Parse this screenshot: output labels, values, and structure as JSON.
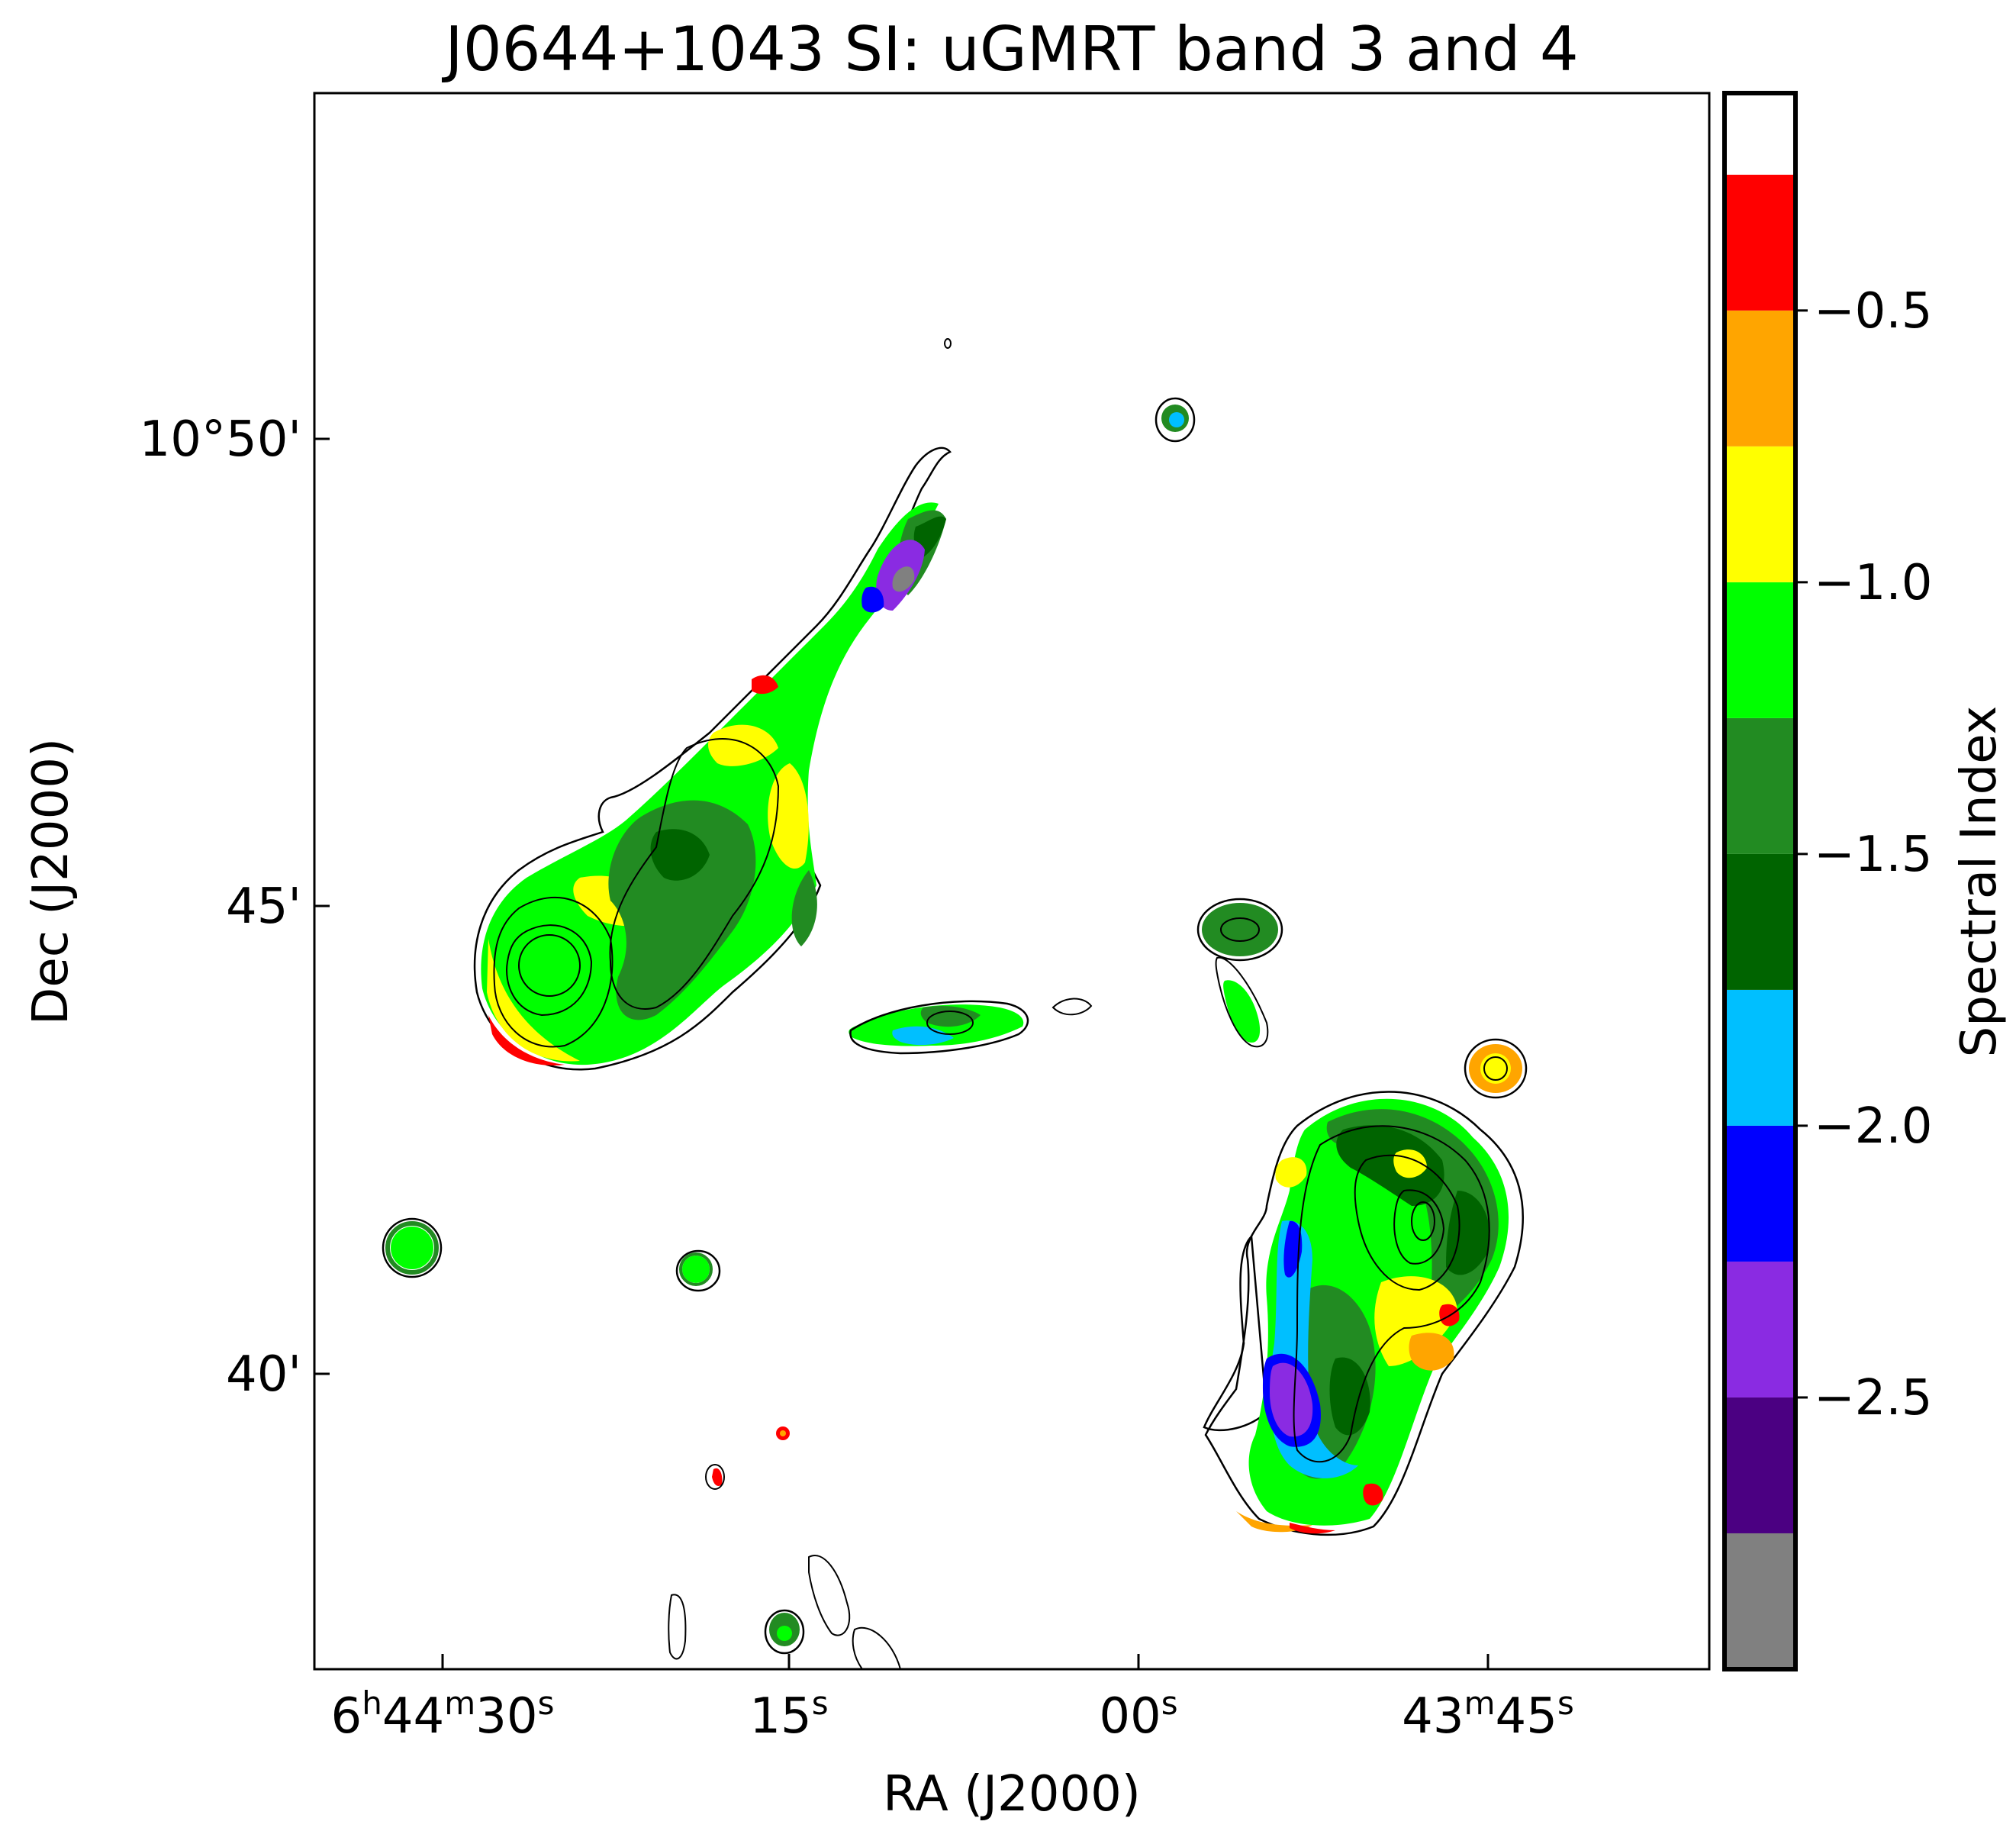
{
  "chart_data": {
    "type": "heatmap",
    "title": "J0644+1043 SI: uGMRT band 3 and 4",
    "xlabel": "RA (J2000)",
    "ylabel": "Dec (J2000)",
    "x_ticks": [
      {
        "pre": "6",
        "sup1": "h",
        "mid": "44",
        "sup2": "m",
        "end": "30",
        "sup3": "s"
      },
      {
        "pre": "",
        "sup1": "",
        "mid": "",
        "sup2": "",
        "end": "15",
        "sup3": "s"
      },
      {
        "pre": "",
        "sup1": "",
        "mid": "",
        "sup2": "",
        "end": "00",
        "sup3": "s"
      },
      {
        "pre": "",
        "sup1": "",
        "mid": "43",
        "sup2": "m",
        "end": "45",
        "sup3": "s"
      }
    ],
    "y_ticks": [
      "10°50'",
      "45'",
      "40'"
    ],
    "colorbar": {
      "label": "Spectral Index",
      "range": [
        -3.0,
        -0.1
      ],
      "tick_labels": [
        "−0.5",
        "−1.0",
        "−1.5",
        "−2.0",
        "−2.5"
      ],
      "tick_values": [
        -0.5,
        -1.0,
        -1.5,
        -2.0,
        -2.5
      ],
      "bins": [
        {
          "from": -3.0,
          "to": -2.75,
          "color": "#808080"
        },
        {
          "from": -2.75,
          "to": -2.5,
          "color": "#4b0082"
        },
        {
          "from": -2.5,
          "to": -2.25,
          "color": "#8a2be2"
        },
        {
          "from": -2.25,
          "to": -2.0,
          "color": "#0000ff"
        },
        {
          "from": -2.0,
          "to": -1.75,
          "color": "#00bfff"
        },
        {
          "from": -1.75,
          "to": -1.5,
          "color": "#006400"
        },
        {
          "from": -1.5,
          "to": -1.25,
          "color": "#228b22"
        },
        {
          "from": -1.25,
          "to": -1.0,
          "color": "#00ff00"
        },
        {
          "from": -1.0,
          "to": -0.75,
          "color": "#ffff00"
        },
        {
          "from": -0.75,
          "to": -0.5,
          "color": "#ffa500"
        },
        {
          "from": -0.5,
          "to": -0.25,
          "color": "#ff0000"
        },
        {
          "from": -0.25,
          "to": -0.1,
          "color": "#ffffff"
        }
      ]
    },
    "grid": false
  }
}
